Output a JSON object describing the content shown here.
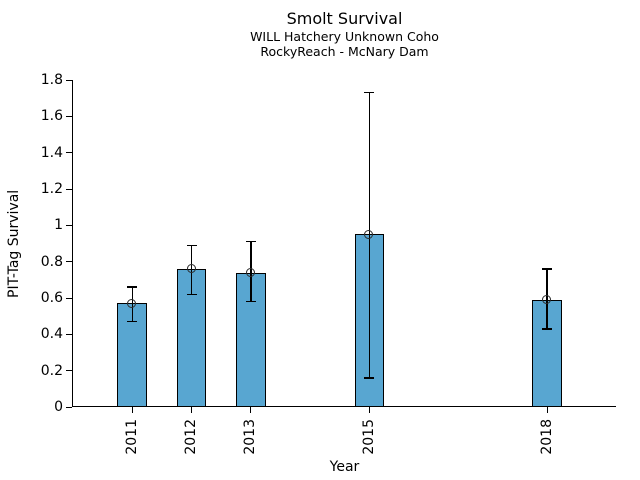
{
  "chart_data": {
    "type": "bar",
    "title": "Smolt Survival",
    "subtitle1": "WILL Hatchery Unknown Coho",
    "subtitle2": "RockyReach - McNary Dam",
    "xlabel": "Year",
    "ylabel": "PIT-Tag Survival",
    "categories": [
      2011,
      2012,
      2013,
      2015,
      2018
    ],
    "xtick_labels": [
      "2011",
      "2012",
      "2013",
      "2015",
      "2018"
    ],
    "series": [
      {
        "name": "PIT-Tag Survival",
        "values": [
          0.57,
          0.76,
          0.74,
          0.95,
          0.59
        ],
        "error_low": [
          0.47,
          0.62,
          0.58,
          0.16,
          0.43
        ],
        "error_high": [
          0.66,
          0.89,
          0.91,
          1.73,
          0.76
        ]
      }
    ],
    "ylim": [
      0,
      1.8
    ],
    "yticks": [
      0,
      0.2,
      0.4,
      0.6,
      0.8,
      1,
      1.2,
      1.4,
      1.6,
      1.8
    ],
    "ytick_labels": [
      "0",
      "0.2",
      "0.4",
      "0.6",
      "0.8",
      "1",
      "1.2",
      "1.4",
      "1.6",
      "1.8"
    ],
    "xlim": [
      2010,
      2019.16
    ],
    "bar_width_years": 0.5,
    "grid": false,
    "legend": null,
    "marker": "open-circle",
    "colors": {
      "bar_fill": "#58A6D1",
      "bar_edge": "#000000",
      "error_bar": "#000000",
      "marker_edge": "#2b2b2b",
      "text": "#000000",
      "background": "#ffffff"
    }
  }
}
